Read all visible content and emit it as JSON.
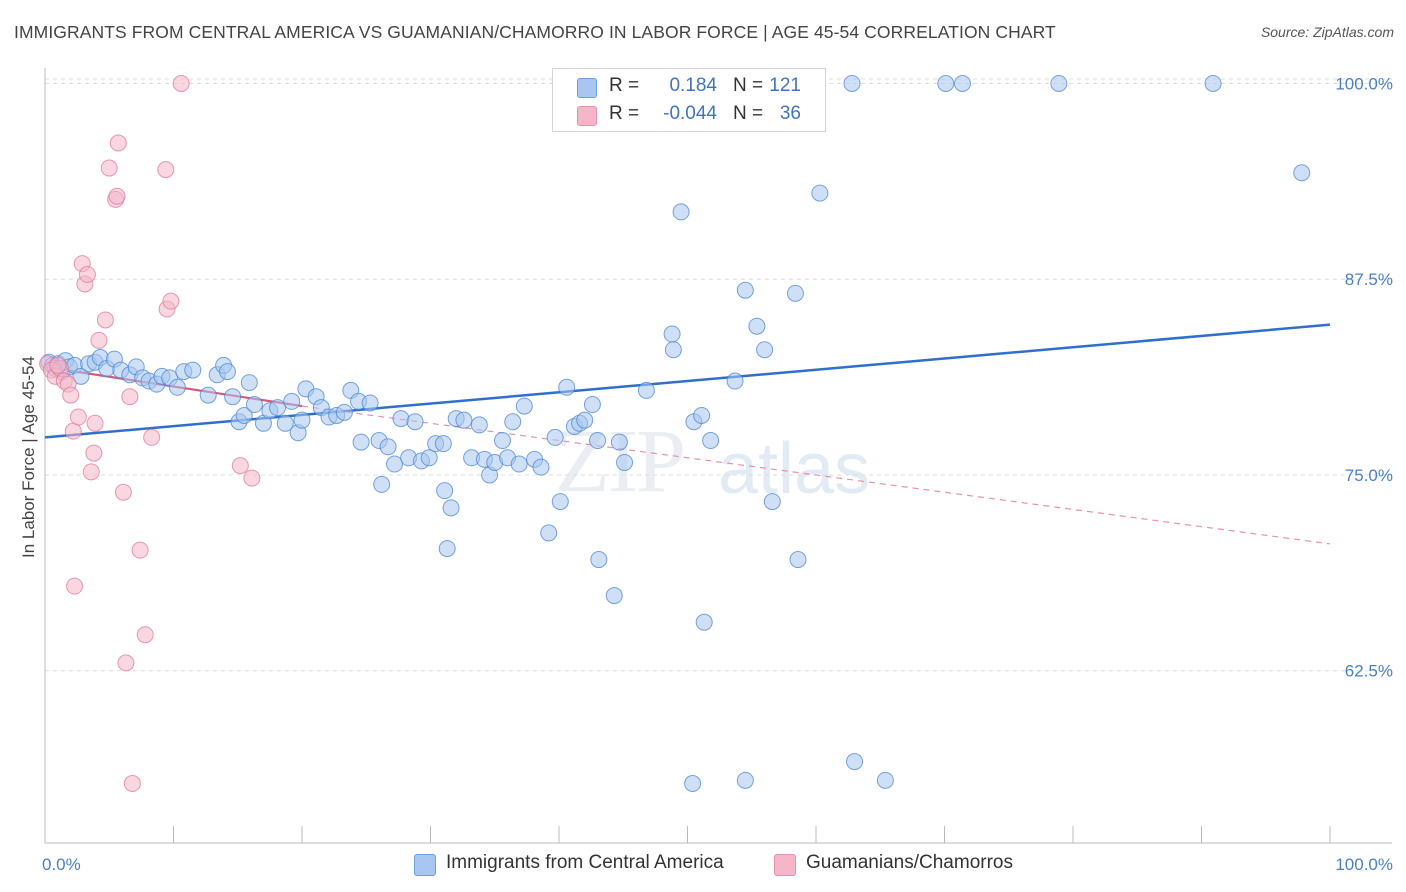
{
  "title": "IMMIGRANTS FROM CENTRAL AMERICA VS GUAMANIAN/CHAMORRO IN LABOR FORCE | AGE 45-54 CORRELATION CHART",
  "source": "Source: ZipAtlas.com",
  "watermark": {
    "zip": "ZIP",
    "atlas": "atlas"
  },
  "legend": {
    "rows": [
      {
        "r_label": "R =",
        "r_value": "0.184",
        "n_label": "N =",
        "n_value": "121",
        "color": "#a8c6ef"
      },
      {
        "r_label": "R =",
        "r_value": "-0.044",
        "n_label": "N =",
        "n_value": "36",
        "color": "#f4b6c8"
      }
    ]
  },
  "bottom_legend": [
    {
      "label": "Immigrants from Central America",
      "color": "#a8c6ef"
    },
    {
      "label": "Guamanians/Chamorros",
      "color": "#f4b6c8"
    }
  ],
  "chart_data": {
    "type": "scatter",
    "title": "IMMIGRANTS FROM CENTRAL AMERICA VS GUAMANIAN/CHAMORRO IN LABOR FORCE | AGE 45-54 CORRELATION CHART",
    "xlabel": "",
    "ylabel": "In Labor Force | Age 45-54",
    "xlim": [
      0,
      100
    ],
    "ylim": [
      51.5,
      101.5
    ],
    "x_tick_labels": [
      "0.0%",
      "100.0%"
    ],
    "y_ticks": [
      62.5,
      75.0,
      87.5,
      100.0
    ],
    "y_tick_labels": [
      "62.5%",
      "75.0%",
      "87.5%",
      "100.0%"
    ],
    "grid": true,
    "legend_position": "top-center",
    "series": [
      {
        "name": "Immigrants from Central America",
        "color": "#4a86d8",
        "fill": "#a8c6ef",
        "trend": {
          "x": [
            0,
            100
          ],
          "y": [
            77.4,
            84.6
          ],
          "color": "#2f6fcf",
          "style": "solid"
        },
        "points": [
          [
            0.3,
            82.2
          ],
          [
            0.6,
            82.0
          ],
          [
            0.8,
            81.8
          ],
          [
            1.0,
            82.1
          ],
          [
            1.3,
            81.6
          ],
          [
            1.6,
            82.3
          ],
          [
            1.9,
            81.9
          ],
          [
            2.3,
            82.0
          ],
          [
            2.8,
            81.3
          ],
          [
            3.4,
            82.1
          ],
          [
            3.9,
            82.2
          ],
          [
            4.3,
            82.5
          ],
          [
            4.8,
            81.8
          ],
          [
            5.4,
            82.4
          ],
          [
            5.9,
            81.7
          ],
          [
            6.6,
            81.4
          ],
          [
            7.1,
            81.9
          ],
          [
            7.6,
            81.2
          ],
          [
            8.1,
            81.0
          ],
          [
            8.7,
            80.8
          ],
          [
            9.1,
            81.3
          ],
          [
            9.7,
            81.2
          ],
          [
            10.3,
            80.6
          ],
          [
            10.8,
            81.6
          ],
          [
            11.5,
            81.7
          ],
          [
            12.7,
            80.1
          ],
          [
            13.4,
            81.4
          ],
          [
            13.9,
            82.0
          ],
          [
            14.6,
            80.0
          ],
          [
            14.2,
            81.6
          ],
          [
            15.1,
            78.4
          ],
          [
            15.5,
            78.8
          ],
          [
            15.9,
            80.9
          ],
          [
            16.3,
            79.5
          ],
          [
            17.0,
            78.3
          ],
          [
            17.5,
            79.1
          ],
          [
            18.1,
            79.3
          ],
          [
            18.7,
            78.3
          ],
          [
            19.2,
            79.7
          ],
          [
            19.7,
            77.7
          ],
          [
            20.3,
            80.5
          ],
          [
            20.0,
            78.5
          ],
          [
            21.1,
            80.0
          ],
          [
            21.5,
            79.3
          ],
          [
            22.1,
            78.7
          ],
          [
            22.7,
            78.8
          ],
          [
            23.3,
            79.0
          ],
          [
            23.8,
            80.4
          ],
          [
            24.4,
            79.7
          ],
          [
            24.6,
            77.1
          ],
          [
            25.3,
            79.6
          ],
          [
            26.0,
            77.2
          ],
          [
            26.2,
            74.4
          ],
          [
            26.7,
            76.8
          ],
          [
            27.2,
            75.7
          ],
          [
            27.7,
            78.6
          ],
          [
            28.3,
            76.1
          ],
          [
            28.8,
            78.4
          ],
          [
            29.3,
            75.9
          ],
          [
            29.9,
            76.1
          ],
          [
            30.4,
            77.0
          ],
          [
            31.0,
            77.0
          ],
          [
            31.1,
            74.0
          ],
          [
            31.6,
            72.9
          ],
          [
            31.3,
            70.3
          ],
          [
            32.0,
            78.6
          ],
          [
            32.6,
            78.5
          ],
          [
            33.2,
            76.1
          ],
          [
            33.8,
            78.2
          ],
          [
            34.2,
            76.0
          ],
          [
            34.6,
            75.0
          ],
          [
            35.0,
            75.8
          ],
          [
            35.6,
            77.2
          ],
          [
            36.0,
            76.1
          ],
          [
            36.4,
            78.4
          ],
          [
            36.9,
            75.7
          ],
          [
            37.3,
            79.4
          ],
          [
            38.1,
            76.0
          ],
          [
            38.6,
            75.5
          ],
          [
            39.2,
            71.3
          ],
          [
            39.7,
            77.4
          ],
          [
            40.1,
            73.3
          ],
          [
            40.6,
            80.6
          ],
          [
            41.2,
            78.1
          ],
          [
            41.6,
            78.3
          ],
          [
            42.0,
            78.5
          ],
          [
            42.6,
            79.5
          ],
          [
            43.0,
            77.2
          ],
          [
            43.1,
            69.6
          ],
          [
            44.3,
            67.3
          ],
          [
            44.7,
            77.1
          ],
          [
            45.1,
            75.8
          ],
          [
            46.8,
            80.4
          ],
          [
            47.8,
            100.0
          ],
          [
            48.8,
            84.0
          ],
          [
            48.9,
            83.0
          ],
          [
            49.5,
            91.8
          ],
          [
            50.5,
            78.4
          ],
          [
            51.1,
            78.8
          ],
          [
            51.8,
            77.2
          ],
          [
            51.3,
            65.6
          ],
          [
            53.7,
            81.0
          ],
          [
            54.5,
            86.8
          ],
          [
            55.4,
            84.5
          ],
          [
            56.0,
            83.0
          ],
          [
            56.6,
            73.3
          ],
          [
            58.4,
            86.6
          ],
          [
            58.6,
            69.6
          ],
          [
            60.0,
            100.0
          ],
          [
            60.3,
            93.0
          ],
          [
            62.8,
            100.0
          ],
          [
            65.4,
            55.5
          ],
          [
            70.1,
            100.0
          ],
          [
            71.4,
            100.0
          ],
          [
            78.9,
            100.0
          ],
          [
            90.9,
            100.0
          ],
          [
            97.8,
            94.3
          ],
          [
            63.0,
            56.7
          ],
          [
            50.4,
            55.3
          ],
          [
            54.5,
            55.5
          ],
          [
            47.2,
            100.0
          ]
        ]
      },
      {
        "name": "Guamanians/Chamorros",
        "color": "#e2779b",
        "fill": "#f4b6c8",
        "trend_solid": {
          "x": [
            0,
            20
          ],
          "y": [
            81.9,
            79.4
          ],
          "color": "#d9567f",
          "style": "solid"
        },
        "trend_dashed": {
          "x": [
            20,
            100
          ],
          "y": [
            79.4,
            70.6
          ],
          "color": "#e890ab",
          "style": "dashed"
        },
        "points": [
          [
            0.2,
            82.1
          ],
          [
            0.5,
            81.7
          ],
          [
            0.8,
            81.3
          ],
          [
            1.2,
            81.8
          ],
          [
            1.5,
            81.0
          ],
          [
            1.8,
            80.8
          ],
          [
            2.0,
            80.1
          ],
          [
            2.2,
            77.8
          ],
          [
            2.3,
            67.9
          ],
          [
            2.6,
            78.7
          ],
          [
            2.9,
            88.5
          ],
          [
            3.1,
            87.2
          ],
          [
            3.3,
            87.8
          ],
          [
            3.6,
            75.2
          ],
          [
            3.9,
            78.3
          ],
          [
            3.8,
            76.4
          ],
          [
            4.2,
            83.6
          ],
          [
            4.7,
            84.9
          ],
          [
            5.0,
            94.6
          ],
          [
            5.5,
            92.6
          ],
          [
            5.6,
            92.8
          ],
          [
            5.7,
            96.2
          ],
          [
            6.1,
            73.9
          ],
          [
            6.3,
            63.0
          ],
          [
            6.6,
            80.0
          ],
          [
            7.4,
            70.2
          ],
          [
            7.8,
            64.8
          ],
          [
            8.3,
            77.4
          ],
          [
            9.4,
            94.5
          ],
          [
            9.5,
            85.6
          ],
          [
            9.8,
            86.1
          ],
          [
            10.6,
            100.0
          ],
          [
            6.8,
            55.3
          ],
          [
            15.2,
            75.6
          ],
          [
            16.1,
            74.8
          ],
          [
            1.0,
            82.0
          ]
        ]
      }
    ]
  }
}
